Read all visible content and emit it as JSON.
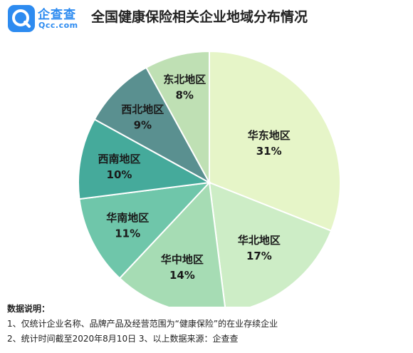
{
  "header": {
    "brand_cn": "企查查",
    "brand_en": "Qcc.com",
    "logo_icon": "magnifier-q-icon",
    "title": "全国健康保险相关企业地域分布情况"
  },
  "chart_data": {
    "type": "pie",
    "title": "全国健康保险相关企业地域分布情况",
    "start": "12 o'clock, clockwise",
    "categories": [
      "华东地区",
      "华北地区",
      "华中地区",
      "华南地区",
      "西南地区",
      "西北地区",
      "东北地区"
    ],
    "values": [
      31,
      17,
      14,
      11,
      10,
      9,
      8
    ],
    "labels": [
      "31%",
      "17%",
      "14%",
      "11%",
      "10%",
      "9%",
      "8%"
    ],
    "colors": [
      "#e6f5c8",
      "#cdedc6",
      "#a6dcb4",
      "#6fc6aa",
      "#45aa9b",
      "#5a9090",
      "#bfe0b4"
    ]
  },
  "notes": {
    "title": "数据说明：",
    "line1": "1、仅统计企业名称、品牌产品及经营范围为“健康保险”的在业存续企业",
    "line2": "2、统计时间截至2020年8月10日    3、以上数据来源：企查查"
  }
}
